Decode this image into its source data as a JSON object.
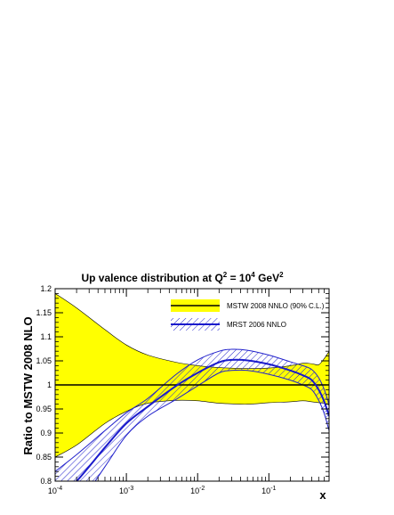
{
  "chart_data": {
    "type": "area",
    "title_main": "Up valence distribution at Q",
    "title_sup1": "2",
    "title_mid": " = 10",
    "title_sup2": "4",
    "title_end": " GeV",
    "title_sup3": "2",
    "ylabel": "Ratio to MSTW 2008 NLO",
    "xlabel": "x",
    "xscale": "log",
    "xlim": [
      0.0001,
      0.7
    ],
    "ylim": [
      0.8,
      1.2
    ],
    "x_ticks": [
      {
        "base": "10",
        "exp": "-4",
        "value": 0.0001
      },
      {
        "base": "10",
        "exp": "-3",
        "value": 0.001
      },
      {
        "base": "10",
        "exp": "-2",
        "value": 0.01
      },
      {
        "base": "10",
        "exp": "-1",
        "value": 0.1
      }
    ],
    "y_ticks": [
      "0.8",
      "0.85",
      "0.9",
      "0.95",
      "1",
      "1.05",
      "1.1",
      "1.15",
      "1.2"
    ],
    "y_tick_values": [
      0.8,
      0.85,
      0.9,
      0.95,
      1.0,
      1.05,
      1.1,
      1.15,
      1.2
    ],
    "legend_position": "top-right",
    "series": [
      {
        "name": "MSTW 2008 NNLO (90% C.L.)",
        "style": "yellow band with black central line",
        "fill": "#ffff00",
        "line_color": "#000000",
        "x": [
          0.0001,
          0.0002,
          0.0005,
          0.001,
          0.002,
          0.005,
          0.01,
          0.02,
          0.05,
          0.1,
          0.2,
          0.3,
          0.4,
          0.5,
          0.6,
          0.7
        ],
        "central": [
          1.0,
          1.0,
          1.0,
          1.0,
          1.0,
          1.0,
          1.0,
          1.0,
          1.0,
          1.0,
          1.0,
          1.0,
          1.0,
          1.0,
          1.0,
          1.0
        ],
        "upper": [
          1.19,
          1.16,
          1.115,
          1.083,
          1.062,
          1.047,
          1.04,
          1.036,
          1.034,
          1.035,
          1.04,
          1.045,
          1.044,
          1.042,
          1.055,
          1.07
        ],
        "lower": [
          0.85,
          0.875,
          0.92,
          0.945,
          0.962,
          0.968,
          0.967,
          0.962,
          0.96,
          0.963,
          0.965,
          0.967,
          0.965,
          0.963,
          0.962,
          0.958
        ]
      },
      {
        "name": "MRST 2006 NNLO",
        "style": "blue hatched band with blue central line",
        "fill": "#2222cc",
        "line_color": "#1a1acc",
        "x": [
          0.0001,
          0.0002,
          0.0005,
          0.001,
          0.002,
          0.005,
          0.01,
          0.02,
          0.03,
          0.05,
          0.1,
          0.2,
          0.3,
          0.4,
          0.5,
          0.6,
          0.7
        ],
        "central": [
          0.76,
          0.8,
          0.87,
          0.92,
          0.955,
          0.998,
          1.025,
          1.047,
          1.052,
          1.051,
          1.043,
          1.03,
          1.02,
          1.01,
          0.99,
          0.965,
          0.935
        ],
        "upper": [
          0.82,
          0.855,
          0.905,
          0.942,
          0.972,
          1.022,
          1.052,
          1.07,
          1.074,
          1.072,
          1.062,
          1.048,
          1.04,
          1.032,
          1.015,
          0.99,
          0.96
        ],
        "lower": [
          0.7,
          0.745,
          0.83,
          0.895,
          0.935,
          0.97,
          0.998,
          1.025,
          1.03,
          1.03,
          1.022,
          1.01,
          1.0,
          0.99,
          0.968,
          0.94,
          0.905
        ]
      }
    ]
  }
}
